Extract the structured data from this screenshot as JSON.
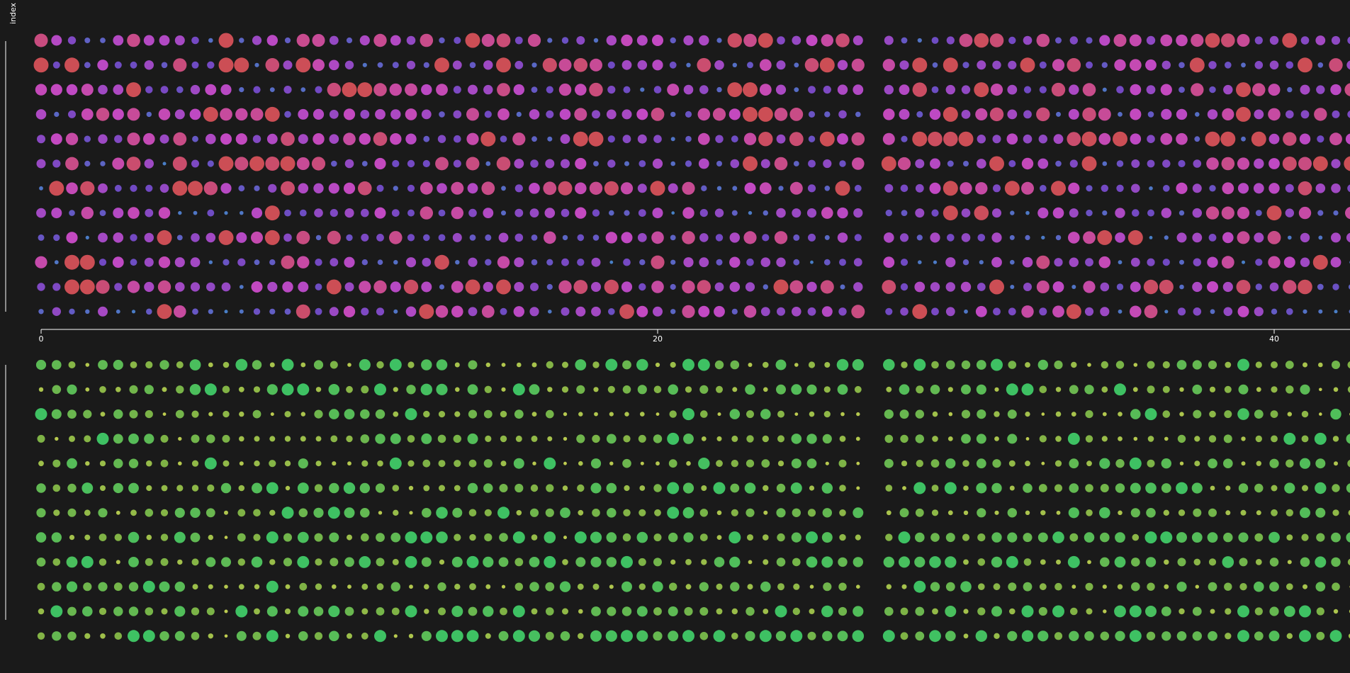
{
  "chart_data": {
    "type": "scatter",
    "ylabel": "index",
    "x_axis": {
      "ticks": [
        0,
        20,
        40
      ],
      "range": [
        0,
        43.5
      ]
    },
    "rows_per_panel": 12,
    "colors": {
      "background": "#1a1a1a",
      "axis": "#ffffff",
      "top_low": "#4a90d9",
      "top_mid": "#7b4fd6",
      "top_high_a": "#d64fd6",
      "top_high_b": "#e0545c",
      "bottom_low": "#d4e157",
      "bottom_mid": "#8bc34a",
      "bottom_high": "#43d46b"
    },
    "gaps": [
      [
        17.1,
        17.5
      ],
      [
        26.8,
        27.5
      ],
      [
        37.0,
        37.3
      ]
    ],
    "seed": 20240611
  }
}
